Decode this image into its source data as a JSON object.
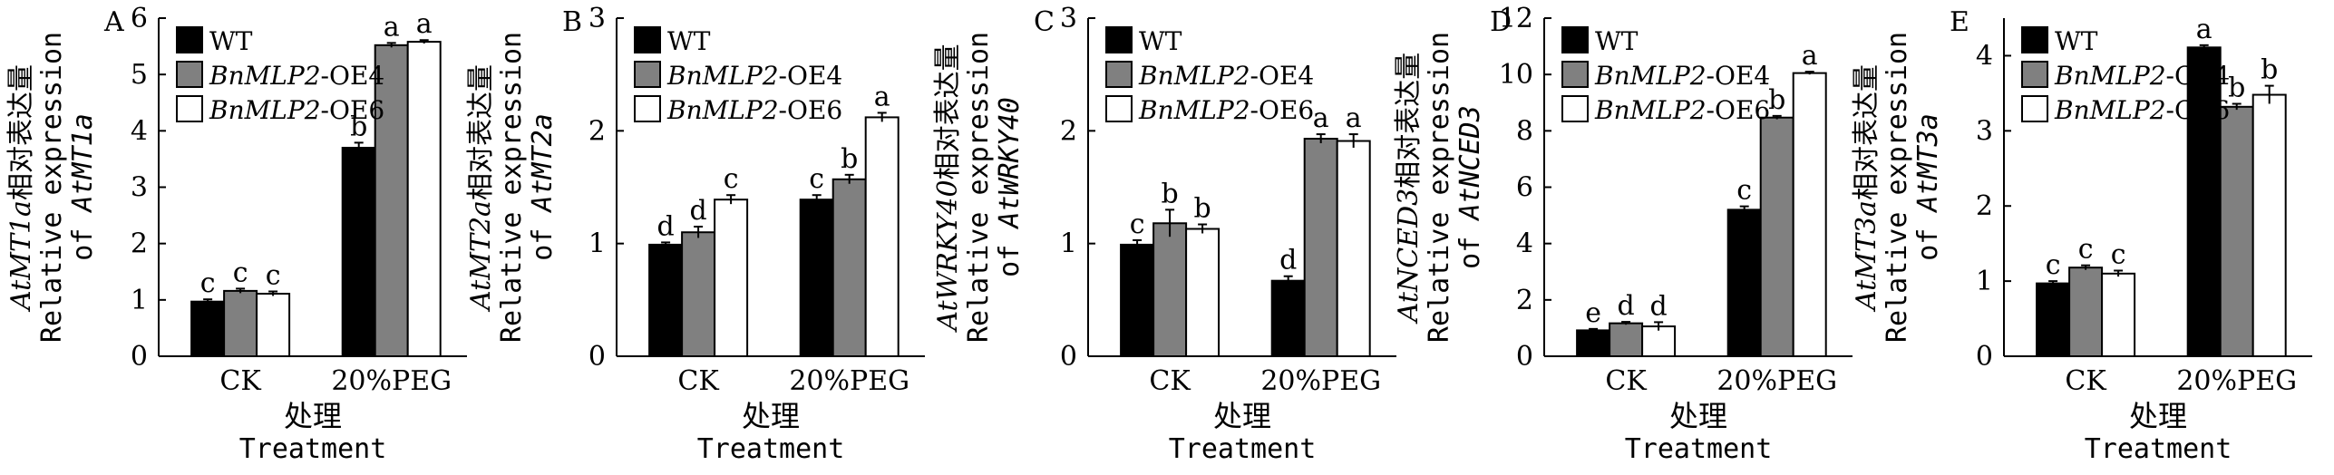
{
  "colors": {
    "WT": "#000000",
    "OE4": "#808080",
    "OE6": "#ffffff",
    "axis": "#000000"
  },
  "common": {
    "xlabel_cn": "处理",
    "xlabel_en": "Treatment",
    "categories": [
      "CK",
      "20%PEG"
    ],
    "legend": [
      {
        "italic": "",
        "rest": "WT"
      },
      {
        "italic": "BnMLP2",
        "rest": "-OE4"
      },
      {
        "italic": "BnMLP2",
        "rest": "-OE6"
      }
    ],
    "ylabel_cn_suffix": "相对表达量",
    "ylabel_en_line1": "Relative expression",
    "ylabel_en_prefix": "of "
  },
  "chart_data": [
    {
      "type": "bar",
      "panel": "A",
      "gene": "AtMT1a",
      "ylim": [
        0,
        6
      ],
      "yticks": [
        0,
        1,
        2,
        3,
        4,
        5,
        6
      ],
      "categories": [
        "CK",
        "20%PEG"
      ],
      "series": [
        {
          "name": "WT",
          "values": [
            0.97,
            3.7
          ],
          "errors": [
            0.04,
            0.09
          ],
          "letters": [
            "c",
            "b"
          ]
        },
        {
          "name": "BnMLP2-OE4",
          "values": [
            1.16,
            5.52
          ],
          "errors": [
            0.04,
            0.04
          ],
          "letters": [
            "c",
            "a"
          ]
        },
        {
          "name": "BnMLP2-OE6",
          "values": [
            1.11,
            5.58
          ],
          "errors": [
            0.04,
            0.03
          ],
          "letters": [
            "c",
            "a"
          ]
        }
      ]
    },
    {
      "type": "bar",
      "panel": "B",
      "gene": "AtMT2a",
      "ylim": [
        0,
        3
      ],
      "yticks": [
        0,
        1,
        2,
        3
      ],
      "categories": [
        "CK",
        "20%PEG"
      ],
      "series": [
        {
          "name": "WT",
          "values": [
            0.99,
            1.39
          ],
          "errors": [
            0.02,
            0.04
          ],
          "letters": [
            "d",
            "c"
          ]
        },
        {
          "name": "BnMLP2-OE4",
          "values": [
            1.1,
            1.57
          ],
          "errors": [
            0.05,
            0.04
          ],
          "letters": [
            "d",
            "b"
          ]
        },
        {
          "name": "BnMLP2-OE6",
          "values": [
            1.39,
            2.12
          ],
          "errors": [
            0.04,
            0.04
          ],
          "letters": [
            "c",
            "a"
          ]
        }
      ]
    },
    {
      "type": "bar",
      "panel": "C",
      "gene": "AtWRKY40",
      "ylim": [
        0,
        3
      ],
      "yticks": [
        0,
        1,
        2,
        3
      ],
      "categories": [
        "CK",
        "20%PEG"
      ],
      "series": [
        {
          "name": "WT",
          "values": [
            0.99,
            0.67
          ],
          "errors": [
            0.04,
            0.04
          ],
          "letters": [
            "c",
            "d"
          ]
        },
        {
          "name": "BnMLP2-OE4",
          "values": [
            1.18,
            1.93
          ],
          "errors": [
            0.12,
            0.04
          ],
          "letters": [
            "b",
            "a"
          ]
        },
        {
          "name": "BnMLP2-OE6",
          "values": [
            1.13,
            1.91
          ],
          "errors": [
            0.04,
            0.06
          ],
          "letters": [
            "b",
            "a"
          ]
        }
      ]
    },
    {
      "type": "bar",
      "panel": "D",
      "gene": "AtNCED3",
      "ylim": [
        0,
        12
      ],
      "yticks": [
        0,
        2,
        4,
        6,
        8,
        10,
        12
      ],
      "categories": [
        "CK",
        "20%PEG"
      ],
      "series": [
        {
          "name": "WT",
          "values": [
            0.92,
            5.2
          ],
          "errors": [
            0.05,
            0.12
          ],
          "letters": [
            "e",
            "c"
          ]
        },
        {
          "name": "BnMLP2-OE4",
          "values": [
            1.17,
            8.47
          ],
          "errors": [
            0.05,
            0.06
          ],
          "letters": [
            "d",
            "b"
          ]
        },
        {
          "name": "BnMLP2-OE6",
          "values": [
            1.06,
            10.05
          ],
          "errors": [
            0.15,
            0.05
          ],
          "letters": [
            "d",
            "a"
          ]
        }
      ]
    },
    {
      "type": "bar",
      "panel": "E",
      "gene": "AtMT3a",
      "ylim": [
        0,
        4.5
      ],
      "yticks": [
        0,
        1,
        2,
        3,
        4
      ],
      "categories": [
        "CK",
        "20%PEG"
      ],
      "series": [
        {
          "name": "WT",
          "values": [
            0.97,
            4.11
          ],
          "errors": [
            0.03,
            0.03
          ],
          "letters": [
            "c",
            "a"
          ]
        },
        {
          "name": "BnMLP2-OE4",
          "values": [
            1.18,
            3.32
          ],
          "errors": [
            0.03,
            0.04
          ],
          "letters": [
            "c",
            "b"
          ]
        },
        {
          "name": "BnMLP2-OE6",
          "values": [
            1.1,
            3.48
          ],
          "errors": [
            0.04,
            0.12
          ],
          "letters": [
            "c",
            "b"
          ]
        }
      ]
    }
  ]
}
